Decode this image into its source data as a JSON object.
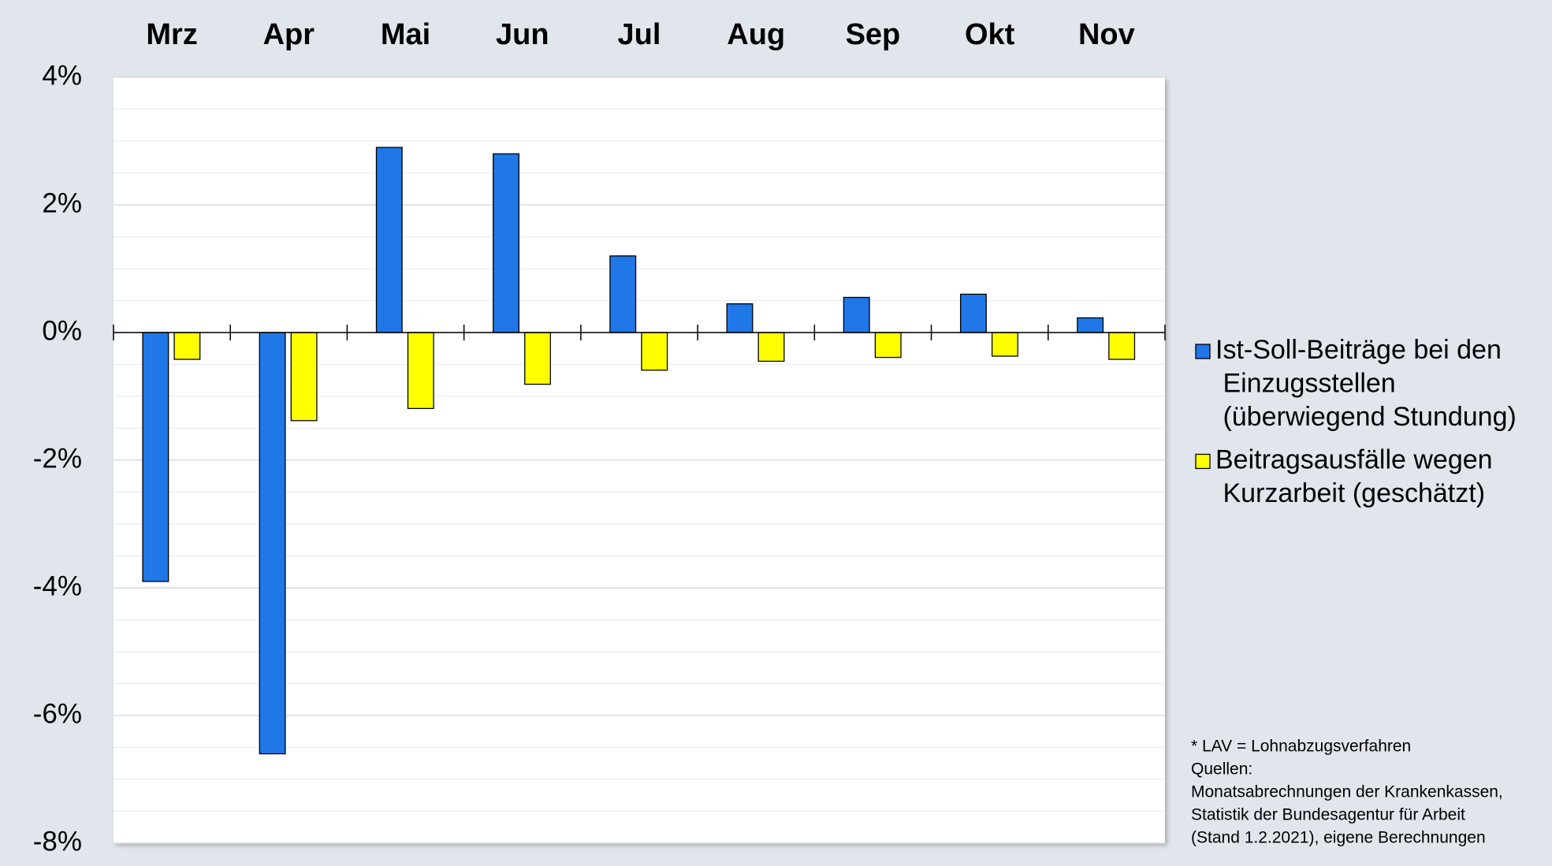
{
  "chart_data": {
    "type": "bar",
    "categories": [
      "Mrz",
      "Apr",
      "Mai",
      "Jun",
      "Jul",
      "Aug",
      "Sep",
      "Okt",
      "Nov"
    ],
    "series": [
      {
        "name": "Ist-Soll-Beiträge bei den Einzugsstellen (überwiegend Stundung)",
        "color": "#1f77e8",
        "values": [
          -3.9,
          -6.6,
          2.9,
          2.8,
          1.2,
          0.45,
          0.55,
          0.6,
          0.23
        ]
      },
      {
        "name": "Beitragsausfälle wegen Kurzarbeit (geschätzt)",
        "color": "#ffff00",
        "values": [
          -0.42,
          -1.38,
          -1.19,
          -0.81,
          -0.59,
          -0.45,
          -0.39,
          -0.37,
          -0.42
        ]
      }
    ],
    "ylim": [
      -8,
      4
    ],
    "yticks": [
      {
        "value": -8,
        "label": "-8%"
      },
      {
        "value": -6,
        "label": "-6%"
      },
      {
        "value": -4,
        "label": "-4%"
      },
      {
        "value": -2,
        "label": "-2%"
      },
      {
        "value": 0,
        "label": "0%"
      },
      {
        "value": 2,
        "label": "2%"
      },
      {
        "value": 4,
        "label": "4%"
      }
    ],
    "grid": true,
    "legend": "right",
    "notes": [
      "* LAV = Lohnabzugsverfahren",
      "Quellen:",
      "Monatsabrechnungen der Krankenkassen,",
      "Statistik der Bundesagentur für Arbeit",
      "(Stand 1.2.2021), eigene Berechnungen"
    ]
  }
}
